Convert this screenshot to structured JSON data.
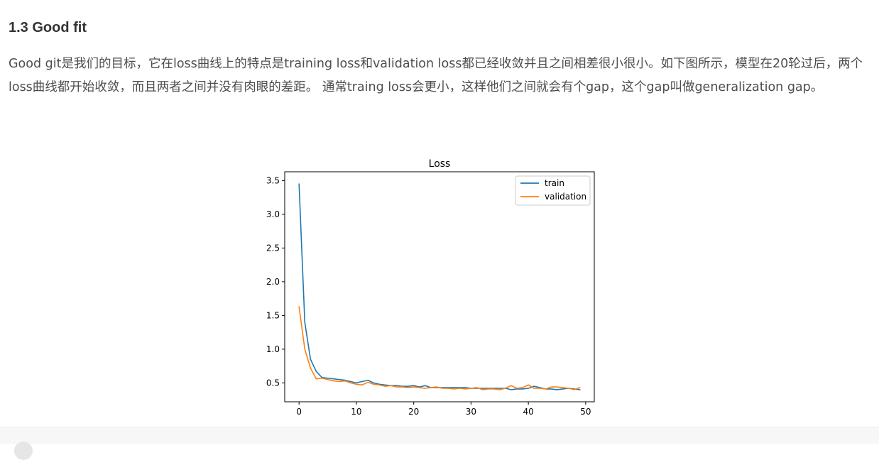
{
  "section": {
    "title": "1.3 Good fit"
  },
  "paragraph": {
    "text": "Good git是我们的目标，它在loss曲线上的特点是training loss和validation loss都已经收敛并且之间相差很小很小。如下图所示，模型在20轮过后，两个loss曲线都开始收敛，而且两者之间并没有肉眼的差距。 通常traing loss会更小，这样他们之间就会有个gap，这个gap叫做generalization gap。"
  },
  "colors": {
    "train": "#1f77b4",
    "validation": "#ff7f0e",
    "text": "#4d4d4d",
    "heading": "#333333"
  },
  "chart_data": {
    "type": "line",
    "title": "Loss",
    "xlabel": "",
    "ylabel": "",
    "xlim": [
      -2.5,
      51.5
    ],
    "ylim": [
      0.22,
      3.63
    ],
    "xticks": [
      0,
      10,
      20,
      30,
      40,
      50
    ],
    "yticks": [
      0.5,
      1.0,
      1.5,
      2.0,
      2.5,
      3.0,
      3.5
    ],
    "xtick_labels": [
      "0",
      "10",
      "20",
      "30",
      "40",
      "50"
    ],
    "ytick_labels": [
      "0.5",
      "1.0",
      "1.5",
      "2.0",
      "2.5",
      "3.0",
      "3.5"
    ],
    "legend_position": "upper right",
    "x": [
      0,
      1,
      2,
      3,
      4,
      5,
      6,
      7,
      8,
      9,
      10,
      11,
      12,
      13,
      14,
      15,
      16,
      17,
      18,
      19,
      20,
      21,
      22,
      23,
      24,
      25,
      26,
      27,
      28,
      29,
      30,
      31,
      32,
      33,
      34,
      35,
      36,
      37,
      38,
      39,
      40,
      41,
      42,
      43,
      44,
      45,
      46,
      47,
      48,
      49
    ],
    "series": [
      {
        "name": "train",
        "color": "#1f77b4",
        "values": [
          3.45,
          1.4,
          0.85,
          0.67,
          0.58,
          0.57,
          0.56,
          0.55,
          0.54,
          0.52,
          0.5,
          0.52,
          0.54,
          0.5,
          0.48,
          0.47,
          0.46,
          0.46,
          0.45,
          0.45,
          0.46,
          0.44,
          0.46,
          0.43,
          0.43,
          0.43,
          0.43,
          0.43,
          0.43,
          0.43,
          0.42,
          0.42,
          0.42,
          0.42,
          0.42,
          0.42,
          0.42,
          0.4,
          0.41,
          0.41,
          0.42,
          0.45,
          0.43,
          0.41,
          0.41,
          0.4,
          0.41,
          0.42,
          0.41,
          0.4
        ]
      },
      {
        "name": "validation",
        "color": "#ff7f0e",
        "values": [
          1.63,
          1.0,
          0.72,
          0.56,
          0.57,
          0.55,
          0.53,
          0.52,
          0.53,
          0.5,
          0.48,
          0.47,
          0.51,
          0.48,
          0.47,
          0.45,
          0.46,
          0.44,
          0.44,
          0.43,
          0.44,
          0.43,
          0.42,
          0.43,
          0.44,
          0.42,
          0.42,
          0.41,
          0.42,
          0.41,
          0.42,
          0.43,
          0.4,
          0.41,
          0.41,
          0.4,
          0.42,
          0.46,
          0.42,
          0.43,
          0.47,
          0.42,
          0.42,
          0.41,
          0.44,
          0.44,
          0.43,
          0.42,
          0.4,
          0.43
        ]
      }
    ]
  }
}
